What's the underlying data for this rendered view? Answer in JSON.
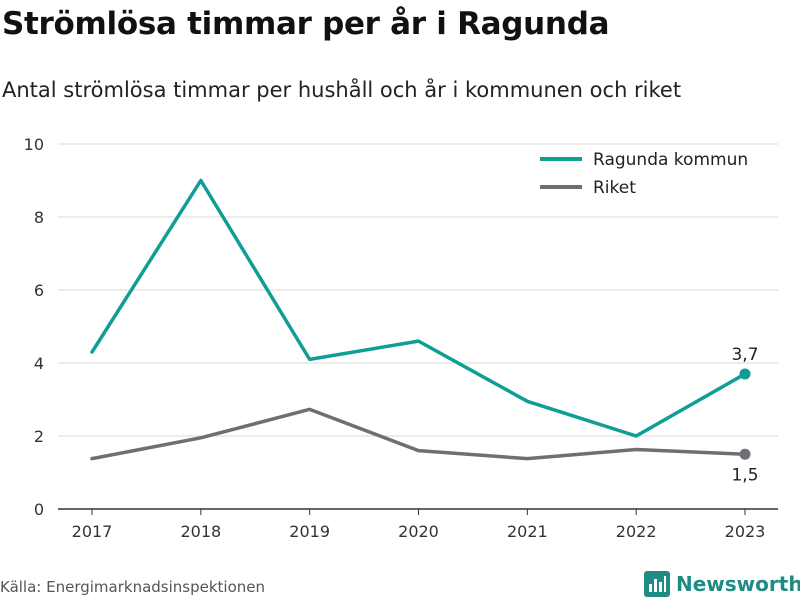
{
  "title": "Strömlösa timmar per år i Ragunda",
  "subtitle": "Antal strömlösa timmar per hushåll och år i kommunen och riket",
  "source": "Källa: Energimarknadsinspektionen",
  "brand": "Newsworthy",
  "colors": {
    "ragunda": "#0f9e95",
    "riket": "#6e6e75",
    "grid": "#d9d9d9",
    "axis": "#333333",
    "brand": "#1f8c84"
  },
  "chart_data": {
    "type": "line",
    "title": "Strömlösa timmar per år i Ragunda",
    "subtitle": "Antal strömlösa timmar per hushåll och år i kommunen och riket",
    "xlabel": "",
    "ylabel": "",
    "x": [
      "2017",
      "2018",
      "2019",
      "2020",
      "2021",
      "2022",
      "2023"
    ],
    "ylim": [
      0,
      10
    ],
    "yticks": [
      0,
      2,
      4,
      6,
      8,
      10
    ],
    "grid": true,
    "legend": "top-right",
    "series": [
      {
        "name": "Ragunda kommun",
        "values": [
          4.3,
          9.0,
          4.1,
          4.6,
          2.95,
          2.0,
          3.7
        ],
        "color": "#0f9e95",
        "end_label": "3,7"
      },
      {
        "name": "Riket",
        "values": [
          1.38,
          1.95,
          2.73,
          1.6,
          1.38,
          1.63,
          1.5
        ],
        "color": "#6e6e75",
        "end_label": "1,5"
      }
    ]
  }
}
